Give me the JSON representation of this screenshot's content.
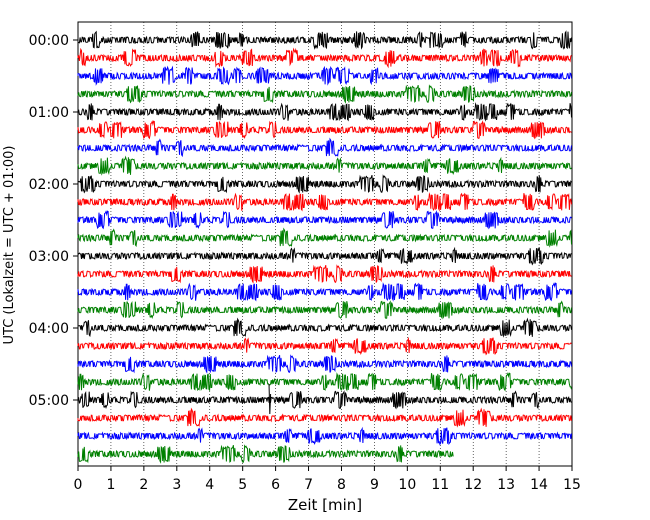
{
  "chart_data": {
    "type": "line",
    "subtype": "helicorder-seismogram",
    "xlabel": "Zeit  [min]",
    "ylabel": "UTC (Lokalzeit = UTC + 01:00)",
    "xlim": [
      0,
      15
    ],
    "x_ticks": [
      0,
      1,
      2,
      3,
      4,
      5,
      6,
      7,
      8,
      9,
      10,
      11,
      12,
      13,
      14,
      15
    ],
    "x_tick_labels": [
      "0",
      "1",
      "2",
      "3",
      "4",
      "5",
      "6",
      "7",
      "8",
      "9",
      "10",
      "11",
      "12",
      "13",
      "14",
      "15"
    ],
    "y_tick_labels": [
      "00:00",
      "01:00",
      "02:00",
      "03:00",
      "04:00",
      "05:00"
    ],
    "rows_per_hour": 4,
    "row_minutes": 15,
    "trace_count": 24,
    "colors_cycle": [
      "#000000",
      "#ff0000",
      "#0000ff",
      "#008000"
    ],
    "last_trace_end_min": 11.4,
    "grid": "vertical dotted lines at each minute",
    "events": [
      {
        "row": 20,
        "x_min": 5.8,
        "note": "large spike"
      }
    ]
  }
}
